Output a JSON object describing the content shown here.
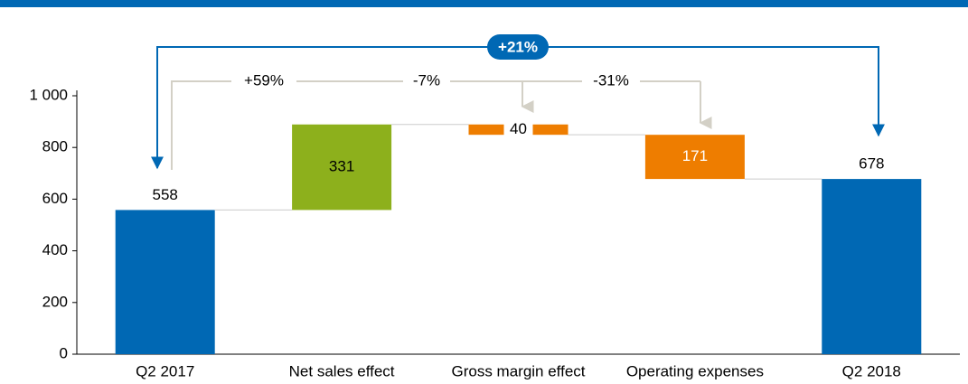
{
  "chart_data": {
    "type": "waterfall",
    "categories": [
      "Q2 2017",
      "Net sales effect",
      "Gross margin effect",
      "Operating expenses",
      "Q2 2018"
    ],
    "values": [
      558,
      331,
      -40,
      -171,
      678
    ],
    "value_labels": [
      "558",
      "331",
      "40",
      "171",
      "678"
    ],
    "colors": [
      "#0068b4",
      "#8db01c",
      "#ee7d00",
      "#ee7d00",
      "#0068b4"
    ],
    "ylim": [
      0,
      1000
    ],
    "yticks": [
      0,
      200,
      400,
      600,
      800,
      {
        "value": 1000,
        "label": "1 000"
      }
    ],
    "annotations": [
      "+59%",
      "-7%",
      "-31%",
      "+21%"
    ]
  }
}
